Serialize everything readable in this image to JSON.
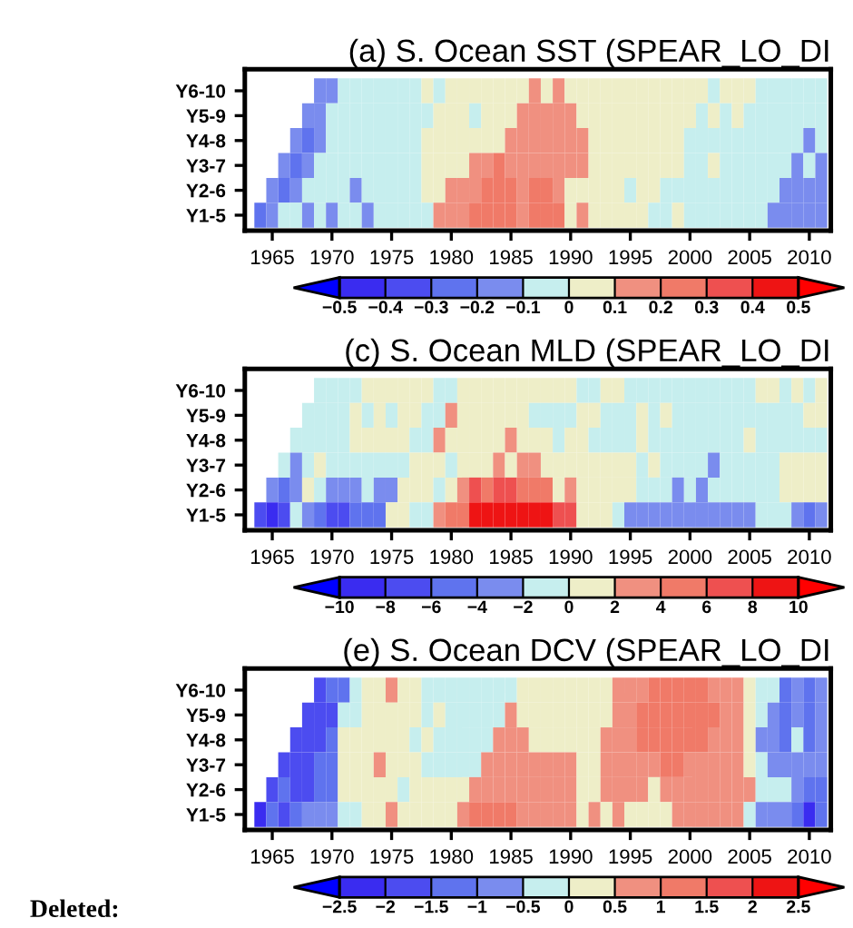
{
  "chart_data": [
    {
      "type": "heatmap",
      "title": "(a) S. Ocean SST (SPEAR_LO_DI",
      "categories": [
        null,
        "1965",
        null,
        null,
        null,
        null,
        "1970",
        null,
        null,
        null,
        null,
        "1975",
        null,
        null,
        null,
        null,
        "1980",
        null,
        null,
        null,
        null,
        "1985",
        null,
        null,
        null,
        null,
        "1990",
        null,
        null,
        null,
        null,
        "1995",
        null,
        null,
        null,
        null,
        "2000",
        null,
        null,
        null,
        null,
        "2005",
        null,
        null,
        null,
        null,
        "2010",
        null
      ],
      "y_categories": [
        "Y6-10",
        "Y5-9",
        "Y4-8",
        "Y3-7",
        "Y2-6",
        "Y1-5"
      ],
      "cells": [
        [
          null,
          null,
          null,
          null,
          null,
          -0.15,
          -0.15,
          -0.05,
          -0.05,
          -0.05,
          -0.05,
          -0.05,
          -0.05,
          -0.05,
          0.05,
          -0.05,
          0.05,
          0.05,
          0.05,
          0.05,
          0.05,
          0.05,
          0.05,
          0.15,
          0.05,
          0.15,
          0.05,
          0.05,
          0.05,
          0.05,
          0.05,
          0.05,
          0.05,
          0.05,
          0.05,
          0.05,
          0.05,
          0.05,
          -0.05,
          0.05,
          0.05,
          0.05,
          -0.05,
          -0.05,
          -0.05,
          -0.05,
          -0.05,
          -0.05
        ],
        [
          null,
          null,
          null,
          null,
          -0.15,
          -0.15,
          -0.05,
          -0.05,
          -0.05,
          -0.05,
          -0.05,
          -0.05,
          -0.05,
          -0.05,
          -0.05,
          0.05,
          0.05,
          0.05,
          -0.05,
          0.05,
          0.05,
          0.05,
          0.15,
          0.15,
          0.15,
          0.15,
          0.15,
          0.05,
          0.05,
          0.05,
          0.05,
          0.05,
          0.05,
          0.05,
          0.05,
          0.05,
          0.05,
          -0.05,
          0.05,
          -0.05,
          0.05,
          -0.05,
          -0.05,
          -0.05,
          -0.05,
          -0.05,
          -0.05,
          -0.05
        ],
        [
          null,
          null,
          null,
          -0.15,
          -0.25,
          -0.15,
          -0.05,
          -0.05,
          -0.05,
          -0.05,
          -0.05,
          -0.05,
          -0.05,
          -0.05,
          0.05,
          0.05,
          0.05,
          0.05,
          0.05,
          0.05,
          0.05,
          0.15,
          0.15,
          0.15,
          0.15,
          0.15,
          0.15,
          0.15,
          0.05,
          0.05,
          0.05,
          0.05,
          0.05,
          0.05,
          0.05,
          0.05,
          -0.05,
          -0.05,
          -0.05,
          -0.05,
          -0.05,
          -0.05,
          -0.05,
          -0.05,
          -0.05,
          -0.05,
          -0.15,
          -0.05
        ],
        [
          null,
          null,
          -0.15,
          -0.25,
          -0.15,
          -0.05,
          -0.05,
          -0.05,
          -0.05,
          -0.05,
          -0.05,
          -0.05,
          -0.05,
          -0.05,
          0.05,
          0.05,
          0.05,
          0.05,
          0.15,
          0.15,
          0.25,
          0.15,
          0.15,
          0.15,
          0.15,
          0.15,
          0.15,
          0.15,
          0.05,
          0.05,
          0.05,
          0.05,
          0.05,
          0.05,
          0.05,
          0.05,
          -0.05,
          -0.05,
          0.05,
          -0.05,
          -0.05,
          -0.05,
          -0.05,
          -0.05,
          -0.05,
          -0.15,
          -0.05,
          -0.15
        ],
        [
          null,
          -0.15,
          -0.25,
          -0.15,
          -0.05,
          -0.05,
          -0.05,
          -0.05,
          -0.15,
          -0.05,
          -0.05,
          -0.05,
          -0.05,
          -0.05,
          0.05,
          0.05,
          0.15,
          0.15,
          0.15,
          0.25,
          0.25,
          0.25,
          0.15,
          0.25,
          0.25,
          0.15,
          0.05,
          0.05,
          0.05,
          0.05,
          0.05,
          -0.05,
          0.05,
          0.05,
          -0.05,
          -0.05,
          -0.05,
          -0.05,
          -0.05,
          -0.05,
          -0.05,
          -0.05,
          -0.05,
          -0.05,
          -0.15,
          -0.15,
          -0.15,
          -0.15
        ],
        [
          -0.25,
          -0.15,
          -0.05,
          -0.05,
          -0.15,
          -0.05,
          -0.15,
          -0.05,
          -0.05,
          -0.15,
          -0.05,
          -0.05,
          -0.05,
          -0.05,
          -0.05,
          0.15,
          0.15,
          0.15,
          0.25,
          0.25,
          0.25,
          0.25,
          0.15,
          0.25,
          0.25,
          0.25,
          0.05,
          0.15,
          0.05,
          0.05,
          0.05,
          0.05,
          0.05,
          -0.05,
          -0.05,
          0.05,
          -0.05,
          -0.05,
          -0.05,
          -0.05,
          -0.05,
          -0.05,
          -0.05,
          -0.15,
          -0.15,
          -0.15,
          -0.15,
          -0.15
        ]
      ],
      "colors": [
        "#3a2cf0",
        "#4c4cf0",
        "#5f73ee",
        "#7a8cee",
        "#c6eeee",
        "#eeeec8",
        "#f09080",
        "#f07a68",
        "#ee5050",
        "#ee1414"
      ],
      "clim": [
        -0.5,
        0.5
      ],
      "cticks": [
        -0.5,
        -0.4,
        -0.3,
        -0.2,
        -0.1,
        0,
        0.1,
        0.2,
        0.3,
        0.4,
        0.5
      ]
    },
    {
      "type": "heatmap",
      "title": "(c) S. Ocean MLD (SPEAR_LO_DI",
      "categories": [
        null,
        "1965",
        null,
        null,
        null,
        null,
        "1970",
        null,
        null,
        null,
        null,
        "1975",
        null,
        null,
        null,
        null,
        "1980",
        null,
        null,
        null,
        null,
        "1985",
        null,
        null,
        null,
        null,
        "1990",
        null,
        null,
        null,
        null,
        "1995",
        null,
        null,
        null,
        null,
        "2000",
        null,
        null,
        null,
        null,
        "2005",
        null,
        null,
        null,
        null,
        "2010",
        null
      ],
      "y_categories": [
        "Y6-10",
        "Y5-9",
        "Y4-8",
        "Y3-7",
        "Y2-6",
        "Y1-5"
      ],
      "cells": [
        [
          null,
          null,
          null,
          null,
          null,
          -1,
          -1,
          -1,
          -1,
          1,
          1,
          1,
          1,
          1,
          1,
          -1,
          -1,
          1,
          1,
          1,
          1,
          1,
          1,
          1,
          1,
          1,
          1,
          -1,
          -1,
          1,
          1,
          -1,
          -1,
          -1,
          -1,
          -1,
          -1,
          -1,
          -1,
          -1,
          -1,
          -1,
          1,
          1,
          -1,
          1,
          -1,
          1
        ],
        [
          null,
          null,
          null,
          null,
          -1,
          -1,
          -1,
          -1,
          1,
          -1,
          1,
          -1,
          1,
          1,
          -1,
          -1,
          3,
          1,
          1,
          1,
          1,
          1,
          1,
          -1,
          -1,
          -1,
          -1,
          1,
          1,
          -1,
          -1,
          -1,
          1,
          -1,
          1,
          -1,
          -1,
          -1,
          -1,
          -1,
          -1,
          -1,
          -1,
          -1,
          -1,
          -1,
          1,
          1
        ],
        [
          null,
          null,
          null,
          -1,
          -1,
          -1,
          -1,
          -1,
          1,
          1,
          1,
          1,
          1,
          -1,
          -1,
          3,
          1,
          1,
          1,
          1,
          1,
          3,
          1,
          1,
          1,
          -1,
          1,
          1,
          -1,
          -1,
          -1,
          -1,
          1,
          -1,
          -1,
          -1,
          -1,
          -1,
          -1,
          -1,
          -1,
          1,
          -1,
          -1,
          -1,
          -1,
          -1,
          -1
        ],
        [
          null,
          null,
          -1,
          -3,
          -1,
          1,
          -1,
          -1,
          -1,
          -1,
          -1,
          -1,
          -1,
          1,
          1,
          1,
          -1,
          1,
          1,
          1,
          3,
          1,
          3,
          3,
          1,
          1,
          1,
          1,
          1,
          1,
          1,
          1,
          -1,
          1,
          -1,
          -1,
          -1,
          -1,
          -3,
          -1,
          -1,
          -1,
          -1,
          -1,
          1,
          1,
          1,
          1
        ],
        [
          null,
          -3,
          -5,
          -3,
          1,
          -1,
          -3,
          -3,
          -3,
          -1,
          -3,
          -3,
          1,
          1,
          1,
          -1,
          1,
          3,
          7,
          5,
          7,
          7,
          5,
          5,
          5,
          1,
          3,
          1,
          1,
          1,
          1,
          1,
          -1,
          -1,
          -1,
          -3,
          -1,
          -3,
          -1,
          -1,
          -1,
          -1,
          -1,
          -1,
          1,
          1,
          1,
          1
        ],
        [
          -7,
          -9,
          -7,
          -1,
          -3,
          -5,
          -7,
          -7,
          -5,
          -5,
          -5,
          1,
          1,
          -1,
          -1,
          3,
          5,
          5,
          9,
          9,
          9,
          9,
          9,
          9,
          9,
          7,
          7,
          1,
          1,
          1,
          -1,
          -3,
          -3,
          -3,
          -3,
          -3,
          -3,
          -3,
          -3,
          -3,
          -3,
          -3,
          -1,
          -1,
          -1,
          -3,
          -5,
          -3
        ]
      ],
      "colors": [
        "#3a2cf0",
        "#4c4cf0",
        "#5f73ee",
        "#7a8cee",
        "#c6eeee",
        "#eeeec8",
        "#f09080",
        "#f07a68",
        "#ee5050",
        "#ee1414"
      ],
      "clim": [
        -10,
        10
      ],
      "cticks": [
        -10,
        -8,
        -6,
        -4,
        -2,
        0,
        2,
        4,
        6,
        8,
        10
      ]
    },
    {
      "type": "heatmap",
      "title": "(e) S. Ocean DCV (SPEAR_LO_DI",
      "categories": [
        null,
        "1965",
        null,
        null,
        null,
        null,
        "1970",
        null,
        null,
        null,
        null,
        "1975",
        null,
        null,
        null,
        null,
        "1980",
        null,
        null,
        null,
        null,
        "1985",
        null,
        null,
        null,
        null,
        "1990",
        null,
        null,
        null,
        null,
        "1995",
        null,
        null,
        null,
        null,
        "2000",
        null,
        null,
        null,
        null,
        "2005",
        null,
        null,
        null,
        null,
        "2010",
        null
      ],
      "y_categories": [
        "Y6-10",
        "Y5-9",
        "Y4-8",
        "Y3-7",
        "Y2-6",
        "Y1-5"
      ],
      "cells": [
        [
          null,
          null,
          null,
          null,
          null,
          -1.75,
          -1.25,
          -1.25,
          -0.25,
          0.25,
          0.25,
          0.75,
          0.25,
          0.25,
          -0.25,
          -0.25,
          -0.25,
          -0.25,
          -0.25,
          -0.25,
          -0.25,
          -0.25,
          0.25,
          0.25,
          0.25,
          0.25,
          0.25,
          0.25,
          0.25,
          0.25,
          0.75,
          0.75,
          0.75,
          1.25,
          1.25,
          1.25,
          1.25,
          1.25,
          0.75,
          0.75,
          0.75,
          0.25,
          -0.25,
          -0.25,
          -1.25,
          -0.75,
          -1.25,
          -0.75
        ],
        [
          null,
          null,
          null,
          null,
          -1.75,
          -1.75,
          -1.75,
          -0.25,
          -0.25,
          0.25,
          0.25,
          0.25,
          0.25,
          0.25,
          -0.25,
          0.25,
          -0.25,
          -0.25,
          -0.25,
          -0.25,
          -0.25,
          0.75,
          0.25,
          0.25,
          0.25,
          0.25,
          0.25,
          0.25,
          0.25,
          0.25,
          0.75,
          0.75,
          1.25,
          1.25,
          1.25,
          1.25,
          1.25,
          1.25,
          1.25,
          0.75,
          0.75,
          0.25,
          -0.25,
          -0.75,
          -1.25,
          -0.75,
          -1.25,
          -0.75
        ],
        [
          null,
          null,
          null,
          -1.75,
          -1.75,
          -1.75,
          -1.25,
          0.25,
          0.25,
          0.25,
          0.25,
          0.25,
          0.25,
          -0.25,
          0.25,
          -0.25,
          -0.25,
          -0.25,
          -0.25,
          -0.25,
          0.75,
          0.75,
          0.75,
          0.25,
          0.25,
          0.25,
          0.25,
          0.25,
          0.25,
          0.75,
          0.75,
          0.75,
          1.25,
          1.25,
          1.25,
          1.25,
          1.25,
          1.25,
          0.75,
          0.75,
          0.75,
          0.25,
          -0.75,
          -0.75,
          -1.25,
          -0.25,
          -1.25,
          -0.75
        ],
        [
          null,
          null,
          -1.75,
          -1.75,
          -1.75,
          -1.25,
          -1.25,
          0.25,
          0.25,
          0.25,
          0.75,
          0.25,
          0.25,
          0.25,
          -0.25,
          -0.25,
          -0.25,
          -0.25,
          -0.25,
          0.75,
          0.75,
          0.75,
          0.75,
          0.75,
          0.75,
          0.75,
          0.75,
          0.25,
          0.25,
          0.75,
          0.75,
          0.75,
          0.75,
          0.75,
          1.25,
          1.25,
          0.75,
          0.75,
          0.75,
          0.75,
          0.75,
          0.25,
          -0.25,
          -0.75,
          -0.75,
          -0.75,
          -0.75,
          -0.75
        ],
        [
          null,
          -1.75,
          -1.25,
          -1.75,
          -1.75,
          -1.25,
          -1.25,
          0.25,
          0.25,
          0.25,
          0.25,
          0.25,
          -0.25,
          0.25,
          0.25,
          0.25,
          0.25,
          0.25,
          0.75,
          0.75,
          0.75,
          0.75,
          0.75,
          0.75,
          0.75,
          0.75,
          0.75,
          0.25,
          0.25,
          0.75,
          0.75,
          0.75,
          0.75,
          0.25,
          0.75,
          0.75,
          0.75,
          0.75,
          0.75,
          0.75,
          0.75,
          0.75,
          -0.25,
          -0.25,
          -0.25,
          -0.75,
          -1.25,
          -1.25
        ],
        [
          -2.25,
          -1.25,
          -1.75,
          -1.25,
          -0.75,
          -0.75,
          -0.75,
          -0.25,
          -0.25,
          0.25,
          0.25,
          0.75,
          0.25,
          0.25,
          0.25,
          0.25,
          0.25,
          0.75,
          1.25,
          1.25,
          1.25,
          1.25,
          0.75,
          0.75,
          0.75,
          0.75,
          0.75,
          0.25,
          0.75,
          0.25,
          0.75,
          0.25,
          0.25,
          0.25,
          0.25,
          0.75,
          0.75,
          0.75,
          0.75,
          0.75,
          0.75,
          -0.25,
          -0.75,
          -0.75,
          -0.75,
          -1.25,
          -2.25,
          -1.25
        ]
      ],
      "colors": [
        "#3a2cf0",
        "#4c4cf0",
        "#5f73ee",
        "#7a8cee",
        "#c6eeee",
        "#eeeec8",
        "#f09080",
        "#f07a68",
        "#ee5050",
        "#ee1414"
      ],
      "clim": [
        -2.5,
        2.5
      ],
      "cticks": [
        -2.5,
        -2,
        -1.5,
        -1,
        -0.5,
        0,
        0.5,
        1,
        1.5,
        2,
        2.5
      ],
      "annotations": [
        "Deleted:"
      ]
    }
  ]
}
